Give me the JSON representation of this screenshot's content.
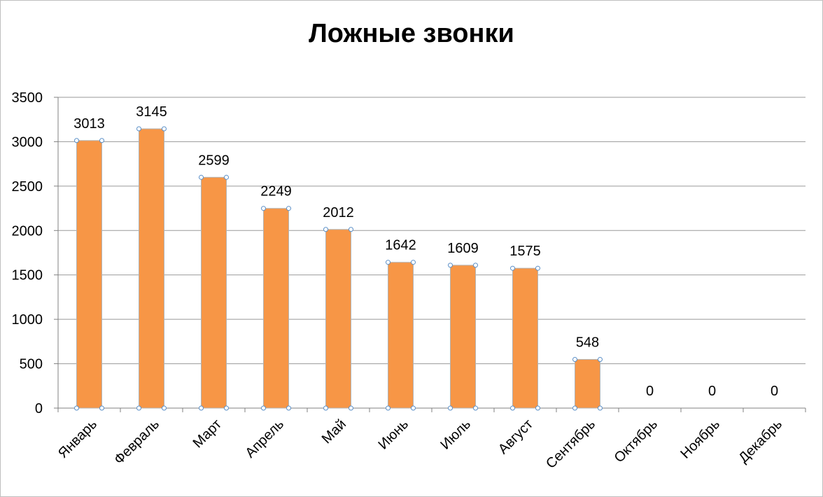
{
  "chart_data": {
    "type": "bar",
    "title": "Ложные звонки",
    "xlabel": "",
    "ylabel": "",
    "categories": [
      "Январь",
      "Февраль",
      "Март",
      "Апрель",
      "Май",
      "Июнь",
      "Июль",
      "Август",
      "Сентябрь",
      "Октябрь",
      "Ноябрь",
      "Декабрь"
    ],
    "values": [
      3013,
      3145,
      2599,
      2249,
      2012,
      1642,
      1609,
      1575,
      548,
      0,
      0,
      0
    ],
    "data_labels": [
      "3013",
      "3145",
      "2599",
      "2249",
      "2012",
      "1642",
      "1609",
      "1575",
      "548",
      "0",
      "0",
      "0"
    ],
    "ylim": [
      0,
      3500
    ],
    "yticks": [
      "0",
      "500",
      "1000",
      "1500",
      "2000",
      "2500",
      "3000",
      "3500"
    ],
    "ytick_values": [
      0,
      500,
      1000,
      1500,
      2000,
      2500,
      3000,
      3500
    ],
    "grid": true,
    "legend": "none",
    "colors": {
      "bar": "#f79646",
      "bar_border": "#b3b3b3",
      "grid": "#999999",
      "handle": "#5b8fc7"
    }
  }
}
